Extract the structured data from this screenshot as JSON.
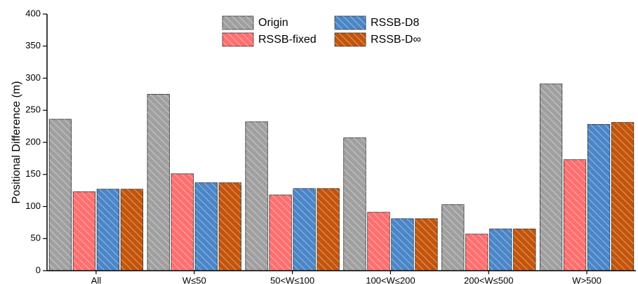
{
  "chart_data": {
    "type": "bar",
    "title": "",
    "xlabel": "",
    "ylabel": "Positional Difference (m)",
    "ylim": [
      0,
      400
    ],
    "yticks": [
      0,
      50,
      100,
      150,
      200,
      250,
      300,
      350,
      400
    ],
    "categories": [
      "All",
      "W≤50",
      "50<W≤100",
      "100<W≤200",
      "200<W≤500",
      "W>500"
    ],
    "series": [
      {
        "name": "Origin",
        "color": "#a0a0a0",
        "values": [
          236,
          275,
          232,
          207,
          103,
          291
        ]
      },
      {
        "name": "RSSB-fixed",
        "color": "#ff6f6f",
        "values": [
          123,
          151,
          118,
          91,
          57,
          173
        ]
      },
      {
        "name": "RSSB-D8",
        "color": "#4a86c8",
        "values": [
          127,
          137,
          128,
          81,
          65,
          228
        ]
      },
      {
        "name": "RSSB-D∞",
        "color": "#c4540a",
        "values": [
          127,
          137,
          128,
          81,
          65,
          231
        ]
      }
    ],
    "legend_position": "top-center",
    "grid": false
  }
}
